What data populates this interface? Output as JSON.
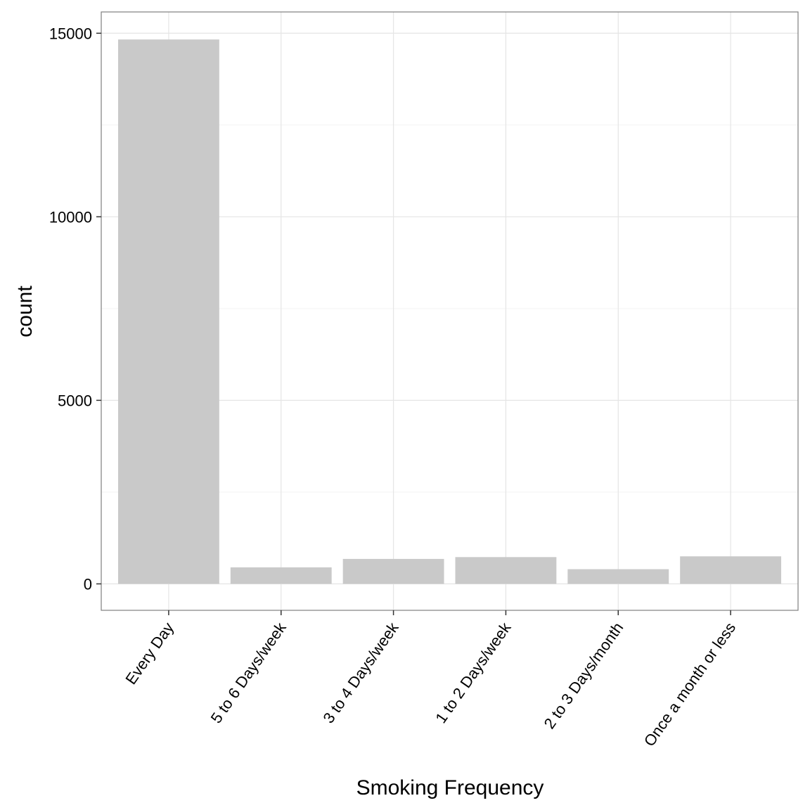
{
  "chart_data": {
    "type": "bar",
    "title": "",
    "xlabel": "Smoking Frequency",
    "ylabel": "count",
    "categories": [
      "Every Day",
      "5 to 6 Days/week",
      "3 to 4 Days/week",
      "1 to 2 Days/week",
      "2 to 3 Days/month",
      "Once a month or less"
    ],
    "values": [
      14830,
      450,
      680,
      730,
      400,
      750
    ],
    "ylim": [
      -720,
      15580
    ],
    "yticks": [
      0,
      5000,
      10000,
      15000
    ],
    "ytick_labels": [
      "0",
      "5000",
      "10000",
      "15000"
    ],
    "grid": true,
    "legend": "none",
    "colors": {
      "bar": "#c9c9c9",
      "background": "#ffffff",
      "grid_major": "#e5e5e5",
      "grid_minor": "#f3f3f3",
      "border": "#7f7f7f"
    }
  }
}
